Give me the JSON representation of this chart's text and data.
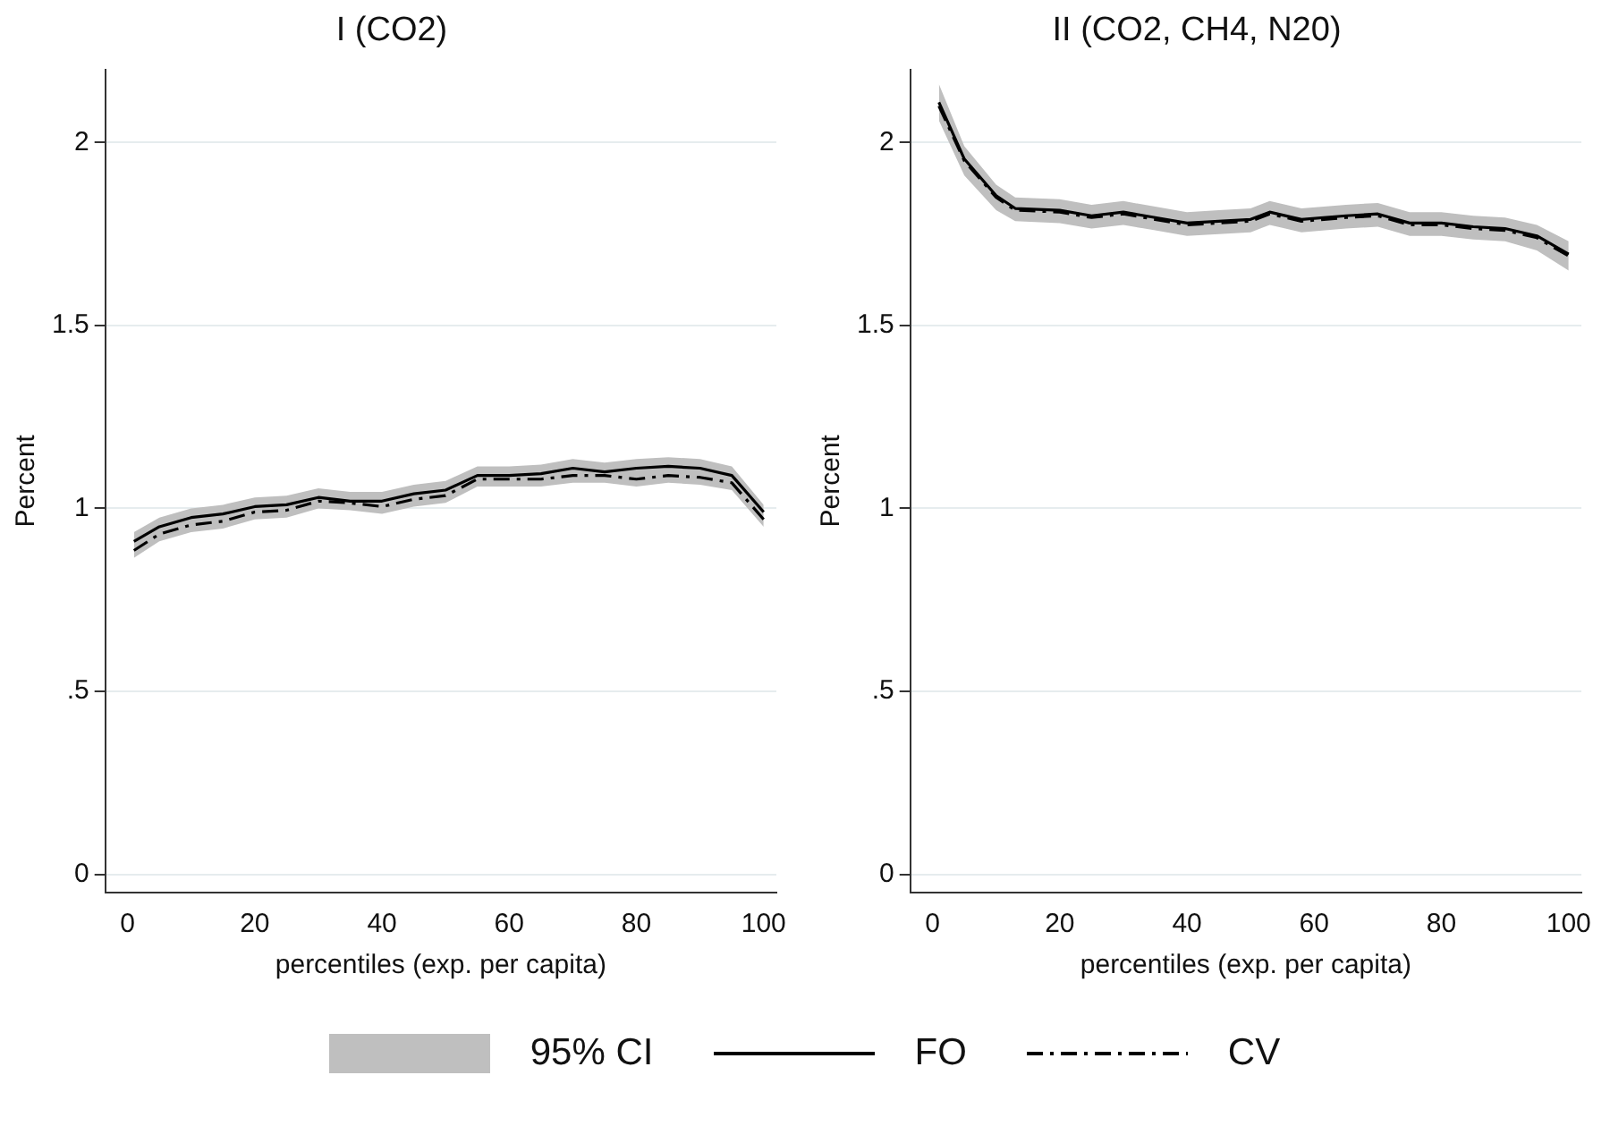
{
  "chart_data": [
    {
      "type": "line",
      "title": "I (CO2)",
      "xlabel": "percentiles (exp. per capita)",
      "ylabel": "Percent",
      "xlim": [
        -3.5,
        102
      ],
      "xticks": [
        0,
        20,
        40,
        60,
        80,
        100
      ],
      "ylim": [
        -0.05,
        2.2
      ],
      "yticks": [
        0,
        {
          "value": 0.5,
          "label": ".5"
        },
        1,
        1.5,
        2
      ],
      "grid": "y",
      "legend": "bottom",
      "marker": "none",
      "annotations": [
        "95% CI"
      ],
      "series": [
        {
          "name": "FO",
          "color": "#000000",
          "line_style": "solid",
          "x": [
            1,
            5,
            10,
            15,
            20,
            25,
            30,
            35,
            40,
            45,
            50,
            55,
            60,
            65,
            70,
            75,
            80,
            85,
            90,
            95,
            100
          ],
          "values": [
            0.91,
            0.95,
            0.975,
            0.985,
            1.005,
            1.01,
            1.03,
            1.02,
            1.02,
            1.04,
            1.05,
            1.09,
            1.09,
            1.095,
            1.11,
            1.1,
            1.11,
            1.115,
            1.11,
            1.09,
            0.99
          ],
          "lower": [
            0.865,
            0.91,
            0.935,
            0.945,
            0.97,
            0.975,
            1.0,
            0.995,
            0.985,
            1.005,
            1.015,
            1.06,
            1.06,
            1.06,
            1.07,
            1.07,
            1.06,
            1.07,
            1.065,
            1.05,
            0.95
          ],
          "upper": [
            0.935,
            0.975,
            1.0,
            1.01,
            1.03,
            1.035,
            1.055,
            1.045,
            1.045,
            1.065,
            1.075,
            1.115,
            1.115,
            1.12,
            1.135,
            1.125,
            1.135,
            1.14,
            1.135,
            1.115,
            1.01
          ]
        },
        {
          "name": "CV",
          "color": "#000000",
          "line_style": "dashed",
          "x": [
            1,
            5,
            10,
            15,
            20,
            25,
            30,
            35,
            40,
            45,
            50,
            55,
            60,
            65,
            70,
            75,
            80,
            85,
            90,
            95,
            100
          ],
          "values": [
            0.885,
            0.93,
            0.955,
            0.965,
            0.99,
            0.995,
            1.02,
            1.015,
            1.005,
            1.025,
            1.035,
            1.08,
            1.08,
            1.08,
            1.09,
            1.09,
            1.08,
            1.09,
            1.085,
            1.07,
            0.97
          ]
        }
      ]
    },
    {
      "type": "line",
      "title": "II (CO2, CH4, N20)",
      "xlabel": "percentiles (exp. per capita)",
      "ylabel": "Percent",
      "xlim": [
        -3.5,
        102
      ],
      "xticks": [
        0,
        20,
        40,
        60,
        80,
        100
      ],
      "ylim": [
        -0.05,
        2.2
      ],
      "yticks": [
        0,
        {
          "value": 0.5,
          "label": ".5"
        },
        1,
        1.5,
        2
      ],
      "grid": "y",
      "marker": "none",
      "series": [
        {
          "color": "#000000",
          "line_style": "solid",
          "x": [
            1,
            5,
            10,
            13,
            20,
            25,
            30,
            35,
            40,
            45,
            50,
            53,
            58,
            65,
            70,
            75,
            80,
            85,
            90,
            95,
            100
          ],
          "values": [
            2.11,
            1.955,
            1.855,
            1.82,
            1.815,
            1.8,
            1.81,
            1.795,
            1.78,
            1.785,
            1.79,
            1.81,
            1.79,
            1.8,
            1.805,
            1.78,
            1.78,
            1.77,
            1.765,
            1.745,
            1.695
          ],
          "lower": [
            2.06,
            1.91,
            1.815,
            1.785,
            1.78,
            1.765,
            1.775,
            1.76,
            1.745,
            1.75,
            1.755,
            1.775,
            1.755,
            1.765,
            1.77,
            1.745,
            1.745,
            1.735,
            1.73,
            1.705,
            1.65
          ],
          "upper": [
            2.16,
            1.99,
            1.885,
            1.85,
            1.845,
            1.83,
            1.84,
            1.825,
            1.81,
            1.815,
            1.82,
            1.84,
            1.82,
            1.83,
            1.835,
            1.81,
            1.81,
            1.8,
            1.795,
            1.775,
            1.73
          ]
        },
        {
          "color": "#000000",
          "line_style": "dashed",
          "x": [
            1,
            5,
            10,
            13,
            20,
            25,
            30,
            35,
            40,
            45,
            50,
            53,
            58,
            65,
            70,
            75,
            80,
            85,
            90,
            95,
            100
          ],
          "values": [
            2.1,
            1.95,
            1.85,
            1.815,
            1.81,
            1.795,
            1.805,
            1.79,
            1.775,
            1.78,
            1.785,
            1.805,
            1.785,
            1.795,
            1.8,
            1.775,
            1.775,
            1.765,
            1.76,
            1.74,
            1.69
          ]
        }
      ]
    }
  ]
}
